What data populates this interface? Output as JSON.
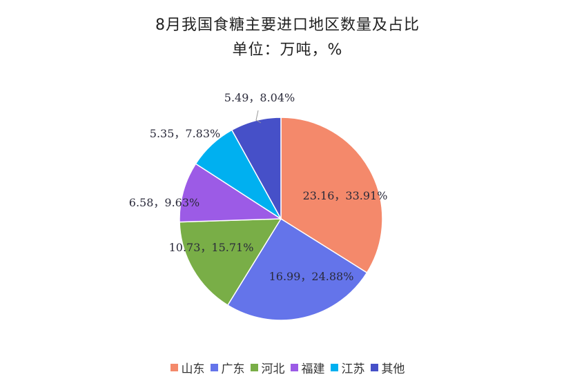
{
  "title_line1": "8月我国食糖主要进口地区数量及占比",
  "title_line2": "单位：万吨，%",
  "chart_data": {
    "type": "pie",
    "title": "8月我国食糖主要进口地区数量及占比",
    "subtitle": "单位：万吨，%",
    "legend_position": "bottom",
    "slices": [
      {
        "name": "山东",
        "value": 23.16,
        "percent": 33.91,
        "label": "23.16，33.91%",
        "color": "#F4896B"
      },
      {
        "name": "广东",
        "value": 16.99,
        "percent": 24.88,
        "label": "16.99，24.88%",
        "color": "#6474EA"
      },
      {
        "name": "河北",
        "value": 10.73,
        "percent": 15.71,
        "label": "10.73，15.71%",
        "color": "#79AE47"
      },
      {
        "name": "福建",
        "value": 6.58,
        "percent": 9.63,
        "label": "6.58，9.63%",
        "color": "#9C5BE6"
      },
      {
        "name": "江苏",
        "value": 5.35,
        "percent": 7.83,
        "label": "5.35，7.83%",
        "color": "#00B0F0"
      },
      {
        "name": "其他",
        "value": 5.49,
        "percent": 8.04,
        "label": "5.49，8.04%",
        "color": "#4650C8"
      }
    ]
  }
}
